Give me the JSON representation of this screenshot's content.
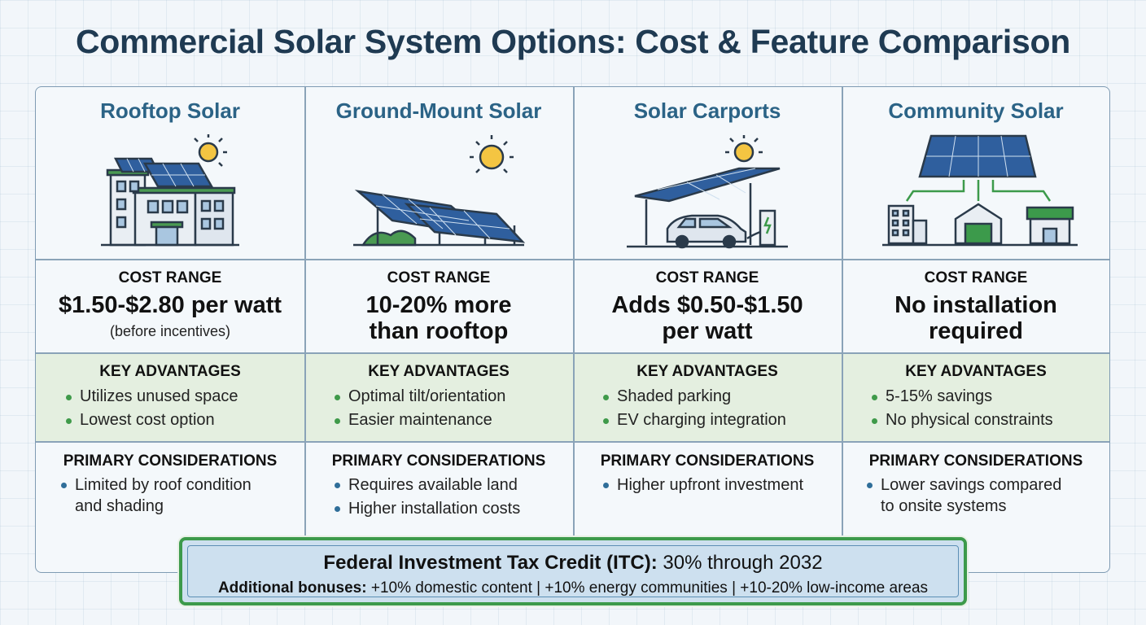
{
  "title": "Commercial Solar System Options: Cost & Feature Comparison",
  "labels": {
    "cost": "COST RANGE",
    "advantages": "KEY ADVANTAGES",
    "considerations": "PRIMARY CONSIDERATIONS"
  },
  "columns": [
    {
      "name": "Rooftop Solar",
      "icon": "rooftop-building-icon",
      "cost_line1": "$1.50-$2.80 per watt",
      "cost_line2": "",
      "cost_note": "(before incentives)",
      "advantages": [
        "Utilizes unused space",
        "Lowest cost option"
      ],
      "considerations": [
        [
          "Limited by roof condition",
          "and shading"
        ]
      ]
    },
    {
      "name": "Ground-Mount Solar",
      "icon": "ground-mount-panels-icon",
      "cost_line1": "10-20% more",
      "cost_line2": "than rooftop",
      "cost_note": "",
      "advantages": [
        "Optimal tilt/orientation",
        "Easier maintenance"
      ],
      "considerations": [
        [
          "Requires available land"
        ],
        [
          "Higher installation costs"
        ]
      ]
    },
    {
      "name": "Solar Carports",
      "icon": "carport-ev-icon",
      "cost_line1": "Adds $0.50-$1.50",
      "cost_line2": "per watt",
      "cost_note": "",
      "advantages": [
        "Shaded parking",
        "EV charging integration"
      ],
      "considerations": [
        [
          "Higher upfront investment"
        ]
      ]
    },
    {
      "name": "Community Solar",
      "icon": "community-grid-icon",
      "cost_line1": "No installation",
      "cost_line2": "required",
      "cost_note": "",
      "advantages": [
        "5-15% savings",
        "No physical constraints"
      ],
      "considerations": [
        [
          "Lower savings compared",
          "to onsite systems"
        ]
      ]
    }
  ],
  "itc": {
    "main_bold": "Federal Investment Tax Credit (ITC):",
    "main_rest": "30% through 2032",
    "sub_bold": "Additional bonuses:",
    "sub_rest": "+10% domestic content | +10% energy communities | +10-20% low-income areas"
  },
  "colors": {
    "title": "#1f3a52",
    "column_title": "#2b6386",
    "advantage_band": "#e4efe0",
    "itc_border": "#3c9a4b",
    "itc_fill": "#cde0ef",
    "panel_blue": "#2f5f9e",
    "sun": "#f4c542"
  }
}
